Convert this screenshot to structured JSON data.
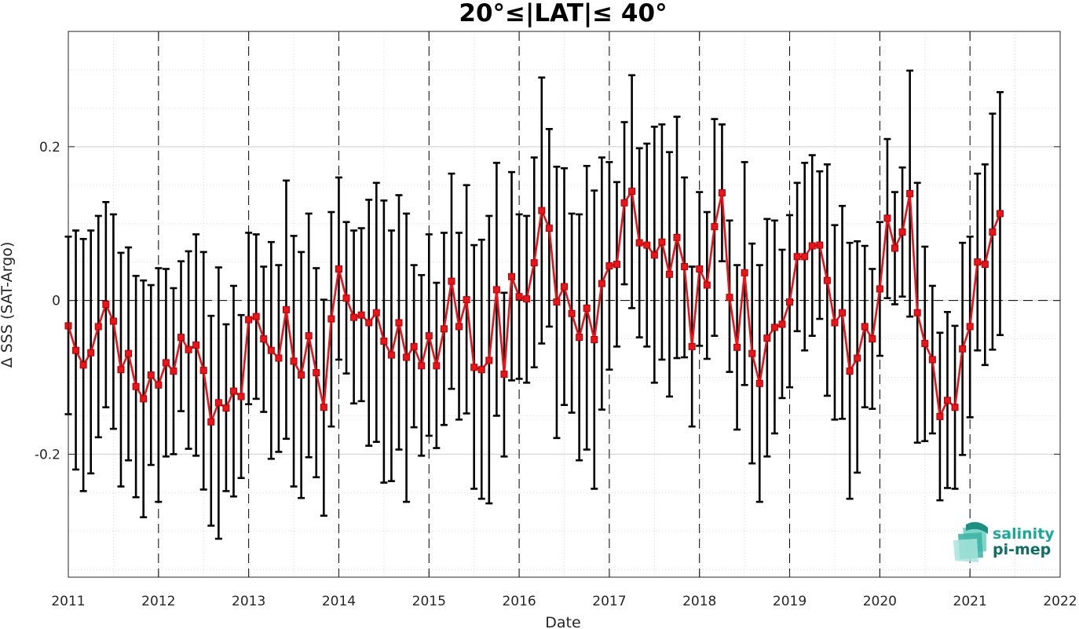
{
  "logo": {
    "line1": "salinity",
    "line2": "pi-mep",
    "color_top": "#1aa89a",
    "color_bottom": "#0e6f66"
  },
  "chart_data": {
    "type": "line",
    "title": "20°≤|LAT|≤ 40°",
    "xlabel": "Date",
    "ylabel": "Δ SSS (SAT-Argo)",
    "xlim": [
      2011,
      2022
    ],
    "ylim": [
      -0.36,
      0.35
    ],
    "x_ticks": [
      "2011",
      "2012",
      "2013",
      "2014",
      "2015",
      "2016",
      "2017",
      "2018",
      "2019",
      "2020",
      "2021",
      "2022"
    ],
    "y_ticks": [
      -0.2,
      0,
      0.2
    ],
    "y_tick_labels": [
      "-0.2",
      "0",
      "0.2"
    ],
    "grid": true,
    "year_dividers": [
      2012,
      2013,
      2014,
      2015,
      2016,
      2017,
      2018,
      2019,
      2020,
      2021
    ],
    "series": [
      {
        "line_color": "#e8141a",
        "errorbar_color": "#000000",
        "points": [
          {
            "x": "2011-01",
            "y": -0.033,
            "lo": -0.148,
            "hi": 0.083
          },
          {
            "x": "2011-02",
            "y": -0.065,
            "lo": -0.22,
            "hi": 0.091
          },
          {
            "x": "2011-03",
            "y": -0.084,
            "lo": -0.248,
            "hi": 0.08
          },
          {
            "x": "2011-04",
            "y": -0.068,
            "lo": -0.225,
            "hi": 0.091
          },
          {
            "x": "2011-05",
            "y": -0.034,
            "lo": -0.178,
            "hi": 0.11
          },
          {
            "x": "2011-06",
            "y": -0.005,
            "lo": -0.139,
            "hi": 0.128
          },
          {
            "x": "2011-07",
            "y": -0.027,
            "lo": -0.167,
            "hi": 0.112
          },
          {
            "x": "2011-08",
            "y": -0.09,
            "lo": -0.242,
            "hi": 0.062
          },
          {
            "x": "2011-09",
            "y": -0.069,
            "lo": -0.208,
            "hi": 0.069
          },
          {
            "x": "2011-10",
            "y": -0.112,
            "lo": -0.256,
            "hi": 0.032
          },
          {
            "x": "2011-11",
            "y": -0.128,
            "lo": -0.282,
            "hi": 0.026
          },
          {
            "x": "2011-12",
            "y": -0.097,
            "lo": -0.214,
            "hi": 0.02
          },
          {
            "x": "2012-01",
            "y": -0.11,
            "lo": -0.262,
            "hi": 0.042
          },
          {
            "x": "2012-02",
            "y": -0.081,
            "lo": -0.203,
            "hi": 0.041
          },
          {
            "x": "2012-03",
            "y": -0.092,
            "lo": -0.2,
            "hi": 0.016
          },
          {
            "x": "2012-04",
            "y": -0.048,
            "lo": -0.144,
            "hi": 0.051
          },
          {
            "x": "2012-05",
            "y": -0.064,
            "lo": -0.193,
            "hi": 0.064
          },
          {
            "x": "2012-06",
            "y": -0.058,
            "lo": -0.202,
            "hi": 0.086
          },
          {
            "x": "2012-07",
            "y": -0.091,
            "lo": -0.246,
            "hi": 0.063
          },
          {
            "x": "2012-08",
            "y": -0.158,
            "lo": -0.293,
            "hi": -0.02
          },
          {
            "x": "2012-09",
            "y": -0.133,
            "lo": -0.31,
            "hi": 0.043
          },
          {
            "x": "2012-10",
            "y": -0.14,
            "lo": -0.248,
            "hi": -0.031
          },
          {
            "x": "2012-11",
            "y": -0.118,
            "lo": -0.255,
            "hi": 0.019
          },
          {
            "x": "2012-12",
            "y": -0.125,
            "lo": -0.231,
            "hi": -0.019
          },
          {
            "x": "2013-01",
            "y": -0.025,
            "lo": -0.135,
            "hi": 0.088
          },
          {
            "x": "2013-02",
            "y": -0.021,
            "lo": -0.128,
            "hi": 0.086
          },
          {
            "x": "2013-03",
            "y": -0.05,
            "lo": -0.145,
            "hi": 0.044
          },
          {
            "x": "2013-04",
            "y": -0.065,
            "lo": -0.206,
            "hi": 0.076
          },
          {
            "x": "2013-05",
            "y": -0.075,
            "lo": -0.197,
            "hi": 0.046
          },
          {
            "x": "2013-06",
            "y": -0.012,
            "lo": -0.18,
            "hi": 0.156
          },
          {
            "x": "2013-07",
            "y": -0.079,
            "lo": -0.242,
            "hi": 0.084
          },
          {
            "x": "2013-08",
            "y": -0.097,
            "lo": -0.257,
            "hi": 0.063
          },
          {
            "x": "2013-09",
            "y": -0.046,
            "lo": -0.204,
            "hi": 0.113
          },
          {
            "x": "2013-10",
            "y": -0.094,
            "lo": -0.23,
            "hi": 0.042
          },
          {
            "x": "2013-11",
            "y": -0.139,
            "lo": -0.28,
            "hi": 0.001
          },
          {
            "x": "2013-12",
            "y": -0.024,
            "lo": -0.164,
            "hi": 0.115
          },
          {
            "x": "2014-01",
            "y": 0.041,
            "lo": -0.077,
            "hi": 0.16
          },
          {
            "x": "2014-02",
            "y": 0.003,
            "lo": -0.095,
            "hi": 0.102
          },
          {
            "x": "2014-03",
            "y": -0.022,
            "lo": -0.134,
            "hi": 0.091
          },
          {
            "x": "2014-04",
            "y": -0.019,
            "lo": -0.131,
            "hi": 0.094
          },
          {
            "x": "2014-05",
            "y": -0.029,
            "lo": -0.189,
            "hi": 0.131
          },
          {
            "x": "2014-06",
            "y": -0.016,
            "lo": -0.184,
            "hi": 0.153
          },
          {
            "x": "2014-07",
            "y": -0.053,
            "lo": -0.237,
            "hi": 0.13
          },
          {
            "x": "2014-08",
            "y": -0.071,
            "lo": -0.235,
            "hi": 0.091
          },
          {
            "x": "2014-09",
            "y": -0.029,
            "lo": -0.194,
            "hi": 0.137
          },
          {
            "x": "2014-10",
            "y": -0.074,
            "lo": -0.262,
            "hi": 0.113
          },
          {
            "x": "2014-11",
            "y": -0.06,
            "lo": -0.165,
            "hi": 0.046
          },
          {
            "x": "2014-12",
            "y": -0.085,
            "lo": -0.202,
            "hi": 0.033
          },
          {
            "x": "2015-01",
            "y": -0.046,
            "lo": -0.176,
            "hi": 0.086
          },
          {
            "x": "2015-02",
            "y": -0.085,
            "lo": -0.192,
            "hi": 0.023
          },
          {
            "x": "2015-03",
            "y": -0.037,
            "lo": -0.162,
            "hi": 0.088
          },
          {
            "x": "2015-04",
            "y": 0.025,
            "lo": -0.115,
            "hi": 0.165
          },
          {
            "x": "2015-05",
            "y": -0.034,
            "lo": -0.155,
            "hi": 0.088
          },
          {
            "x": "2015-06",
            "y": 0.001,
            "lo": -0.147,
            "hi": 0.15
          },
          {
            "x": "2015-07",
            "y": -0.087,
            "lo": -0.245,
            "hi": 0.072
          },
          {
            "x": "2015-08",
            "y": -0.09,
            "lo": -0.258,
            "hi": 0.079
          },
          {
            "x": "2015-09",
            "y": -0.078,
            "lo": -0.264,
            "hi": 0.11
          },
          {
            "x": "2015-10",
            "y": 0.014,
            "lo": -0.15,
            "hi": 0.179
          },
          {
            "x": "2015-11",
            "y": -0.096,
            "lo": -0.203,
            "hi": 0.01
          },
          {
            "x": "2015-12",
            "y": 0.031,
            "lo": -0.104,
            "hi": 0.167
          },
          {
            "x": "2016-01",
            "y": 0.005,
            "lo": -0.102,
            "hi": 0.112
          },
          {
            "x": "2016-02",
            "y": 0.002,
            "lo": -0.107,
            "hi": 0.11
          },
          {
            "x": "2016-03",
            "y": 0.049,
            "lo": -0.087,
            "hi": 0.186
          },
          {
            "x": "2016-04",
            "y": 0.117,
            "lo": -0.056,
            "hi": 0.29
          },
          {
            "x": "2016-05",
            "y": 0.094,
            "lo": -0.034,
            "hi": 0.223
          },
          {
            "x": "2016-06",
            "y": -0.002,
            "lo": -0.179,
            "hi": 0.174
          },
          {
            "x": "2016-07",
            "y": 0.018,
            "lo": -0.136,
            "hi": 0.172
          },
          {
            "x": "2016-08",
            "y": -0.017,
            "lo": -0.146,
            "hi": 0.113
          },
          {
            "x": "2016-09",
            "y": -0.048,
            "lo": -0.208,
            "hi": 0.112
          },
          {
            "x": "2016-10",
            "y": -0.01,
            "lo": -0.194,
            "hi": 0.175
          },
          {
            "x": "2016-11",
            "y": -0.051,
            "lo": -0.245,
            "hi": 0.143
          },
          {
            "x": "2016-12",
            "y": 0.022,
            "lo": -0.142,
            "hi": 0.186
          },
          {
            "x": "2017-01",
            "y": 0.045,
            "lo": -0.09,
            "hi": 0.18
          },
          {
            "x": "2017-02",
            "y": 0.047,
            "lo": -0.06,
            "hi": 0.154
          },
          {
            "x": "2017-03",
            "y": 0.127,
            "lo": 0.021,
            "hi": 0.232
          },
          {
            "x": "2017-04",
            "y": 0.142,
            "lo": -0.01,
            "hi": 0.293
          },
          {
            "x": "2017-05",
            "y": 0.075,
            "lo": -0.048,
            "hi": 0.198
          },
          {
            "x": "2017-06",
            "y": 0.072,
            "lo": -0.06,
            "hi": 0.204
          },
          {
            "x": "2017-07",
            "y": 0.059,
            "lo": -0.107,
            "hi": 0.226
          },
          {
            "x": "2017-08",
            "y": 0.076,
            "lo": -0.077,
            "hi": 0.229
          },
          {
            "x": "2017-09",
            "y": 0.034,
            "lo": -0.125,
            "hi": 0.193
          },
          {
            "x": "2017-10",
            "y": 0.082,
            "lo": -0.075,
            "hi": 0.239
          },
          {
            "x": "2017-11",
            "y": 0.044,
            "lo": -0.074,
            "hi": 0.16
          },
          {
            "x": "2017-12",
            "y": -0.06,
            "lo": -0.164,
            "hi": 0.044
          },
          {
            "x": "2018-01",
            "y": 0.041,
            "lo": -0.059,
            "hi": 0.141
          },
          {
            "x": "2018-02",
            "y": 0.02,
            "lo": -0.076,
            "hi": 0.115
          },
          {
            "x": "2018-03",
            "y": 0.096,
            "lo": -0.046,
            "hi": 0.236
          },
          {
            "x": "2018-04",
            "y": 0.14,
            "lo": 0.051,
            "hi": 0.229
          },
          {
            "x": "2018-05",
            "y": 0.004,
            "lo": -0.093,
            "hi": 0.104
          },
          {
            "x": "2018-06",
            "y": -0.061,
            "lo": -0.168,
            "hi": 0.046
          },
          {
            "x": "2018-07",
            "y": 0.036,
            "lo": -0.11,
            "hi": 0.18
          },
          {
            "x": "2018-08",
            "y": -0.069,
            "lo": -0.212,
            "hi": 0.074
          },
          {
            "x": "2018-09",
            "y": -0.108,
            "lo": -0.262,
            "hi": 0.046
          },
          {
            "x": "2018-10",
            "y": -0.049,
            "lo": -0.203,
            "hi": 0.106
          },
          {
            "x": "2018-11",
            "y": -0.035,
            "lo": -0.173,
            "hi": 0.104
          },
          {
            "x": "2018-12",
            "y": -0.031,
            "lo": -0.127,
            "hi": 0.066
          },
          {
            "x": "2019-01",
            "y": -0.002,
            "lo": -0.113,
            "hi": 0.111
          },
          {
            "x": "2019-02",
            "y": 0.057,
            "lo": -0.04,
            "hi": 0.153
          },
          {
            "x": "2019-03",
            "y": 0.057,
            "lo": -0.065,
            "hi": 0.179
          },
          {
            "x": "2019-04",
            "y": 0.071,
            "lo": -0.046,
            "hi": 0.189
          },
          {
            "x": "2019-05",
            "y": 0.072,
            "lo": -0.024,
            "hi": 0.168
          },
          {
            "x": "2019-06",
            "y": 0.026,
            "lo": -0.124,
            "hi": 0.177
          },
          {
            "x": "2019-07",
            "y": -0.029,
            "lo": -0.155,
            "hi": 0.098
          },
          {
            "x": "2019-08",
            "y": -0.016,
            "lo": -0.154,
            "hi": 0.123
          },
          {
            "x": "2019-09",
            "y": -0.092,
            "lo": -0.258,
            "hi": 0.075
          },
          {
            "x": "2019-10",
            "y": -0.075,
            "lo": -0.224,
            "hi": 0.077
          },
          {
            "x": "2019-11",
            "y": -0.034,
            "lo": -0.139,
            "hi": 0.071
          },
          {
            "x": "2019-12",
            "y": -0.05,
            "lo": -0.141,
            "hi": 0.041
          },
          {
            "x": "2020-01",
            "y": 0.015,
            "lo": -0.072,
            "hi": 0.102
          },
          {
            "x": "2020-02",
            "y": 0.107,
            "lo": 0.003,
            "hi": 0.21
          },
          {
            "x": "2020-03",
            "y": 0.068,
            "lo": -0.005,
            "hi": 0.141
          },
          {
            "x": "2020-04",
            "y": 0.089,
            "lo": 0.005,
            "hi": 0.173
          },
          {
            "x": "2020-05",
            "y": 0.139,
            "lo": -0.021,
            "hi": 0.299
          },
          {
            "x": "2020-06",
            "y": -0.016,
            "lo": -0.185,
            "hi": 0.153
          },
          {
            "x": "2020-07",
            "y": -0.056,
            "lo": -0.183,
            "hi": 0.07
          },
          {
            "x": "2020-08",
            "y": -0.077,
            "lo": -0.173,
            "hi": 0.019
          },
          {
            "x": "2020-09",
            "y": -0.151,
            "lo": -0.26,
            "hi": -0.042
          },
          {
            "x": "2020-10",
            "y": -0.13,
            "lo": -0.244,
            "hi": -0.015
          },
          {
            "x": "2020-11",
            "y": -0.139,
            "lo": -0.245,
            "hi": -0.033
          },
          {
            "x": "2020-12",
            "y": -0.063,
            "lo": -0.201,
            "hi": 0.075
          },
          {
            "x": "2021-01",
            "y": -0.034,
            "lo": -0.152,
            "hi": 0.083
          },
          {
            "x": "2021-02",
            "y": 0.05,
            "lo": -0.065,
            "hi": 0.165
          },
          {
            "x": "2021-03",
            "y": 0.047,
            "lo": -0.084,
            "hi": 0.177
          },
          {
            "x": "2021-04",
            "y": 0.089,
            "lo": -0.064,
            "hi": 0.243
          },
          {
            "x": "2021-05",
            "y": 0.113,
            "lo": -0.045,
            "hi": 0.271
          }
        ]
      }
    ]
  }
}
